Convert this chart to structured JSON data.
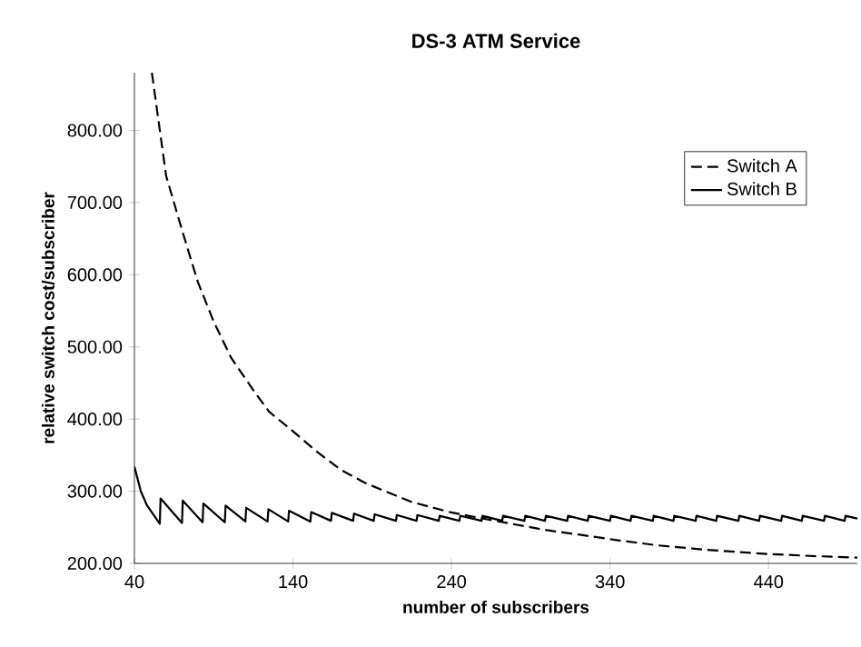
{
  "chart_data": {
    "type": "line",
    "title": "DS-3 ATM Service",
    "xlabel": "number of subscribers",
    "ylabel": "relative switch cost/subscriber",
    "xlim": [
      40,
      496
    ],
    "ylim": [
      200,
      880
    ],
    "xticks": [
      40,
      140,
      240,
      340,
      440
    ],
    "yticks": [
      {
        "value": 200,
        "label": "200.00"
      },
      {
        "value": 300,
        "label": "300.00"
      },
      {
        "value": 400,
        "label": "400.00"
      },
      {
        "value": 500,
        "label": "500.00"
      },
      {
        "value": 600,
        "label": "600.00"
      },
      {
        "value": 700,
        "label": "700.00"
      },
      {
        "value": 800,
        "label": "800.00"
      }
    ],
    "grid": false,
    "legend": "top right",
    "marker": "none",
    "series": [
      {
        "name": "Switch A",
        "color": "#000000",
        "line_style": "dashed",
        "x": [
          51,
          60,
          70,
          80,
          90,
          101,
          115,
          125,
          139,
          155,
          170,
          185,
          197,
          215,
          239,
          260,
          280,
          300,
          320,
          345,
          370,
          400,
          439,
          470,
          496
        ],
        "values": [
          880,
          737,
          662,
          590,
          535,
          485,
          440,
          410,
          385,
          355,
          330,
          312,
          301,
          285,
          271,
          262,
          254,
          246,
          240,
          232,
          225,
          219,
          213,
          210,
          208
        ]
      },
      {
        "name": "Switch B",
        "color": "#000000",
        "line_style": "solid",
        "x": [
          40,
          44,
          48,
          56,
          56.5,
          70,
          70.5,
          83,
          83.5,
          97,
          97.5,
          110,
          110.5,
          124,
          124.5,
          137,
          137.5,
          151,
          151.5,
          164,
          164.5,
          178,
          178.5,
          191,
          191.5,
          205,
          205.5,
          218,
          218.5,
          232,
          232.5,
          245,
          245.5,
          259,
          259.5,
          272,
          272.5,
          286,
          286.5,
          299,
          299.5,
          313,
          313.5,
          326,
          326.5,
          340,
          340.5,
          353,
          353.5,
          367,
          367.5,
          380,
          380.5,
          394,
          394.5,
          407,
          407.5,
          421,
          421.5,
          434,
          434.5,
          448,
          448.5,
          461,
          461.5,
          475,
          475.5,
          488,
          488.5,
          496
        ],
        "values": [
          334,
          300,
          280,
          255,
          290,
          256,
          287,
          257,
          283,
          257,
          280,
          258,
          277,
          258,
          275,
          258,
          273,
          258,
          271,
          259,
          270,
          259,
          269,
          259,
          268,
          259,
          267,
          259,
          267,
          259,
          266,
          259,
          266,
          259,
          266,
          259,
          266,
          259,
          266,
          259,
          266,
          259,
          266,
          259,
          266,
          259,
          266,
          259,
          266,
          259,
          266,
          259,
          266,
          259,
          266,
          259,
          266,
          259,
          266,
          259,
          266,
          259,
          266,
          259,
          266,
          259,
          266,
          259,
          266,
          262
        ]
      }
    ]
  }
}
